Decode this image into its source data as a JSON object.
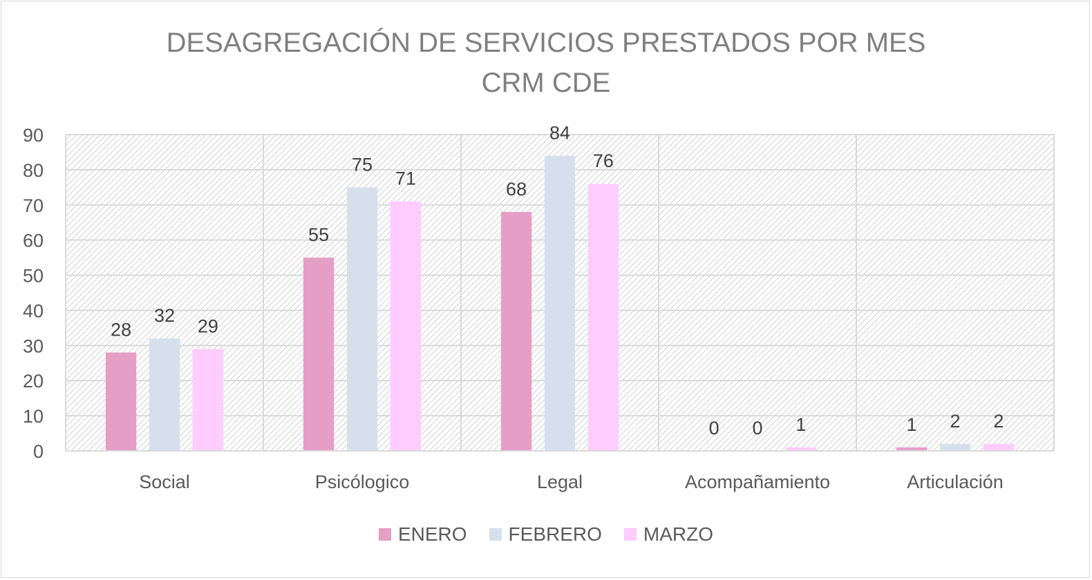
{
  "chart_data": {
    "type": "bar",
    "title": "DESAGREGACIÓN DE SERVICIOS PRESTADOS POR MES",
    "subtitle": "CRM CDE",
    "xlabel": "",
    "ylabel": "",
    "ylim": [
      0,
      90
    ],
    "yticks": [
      0,
      10,
      20,
      30,
      40,
      50,
      60,
      70,
      80,
      90
    ],
    "grid": true,
    "legend_position": "bottom",
    "categories": [
      "Social",
      "Psicólogico",
      "Legal",
      "Acompañamiento",
      "Articulación"
    ],
    "series": [
      {
        "name": "ENERO",
        "color": "#e59ec6",
        "values": [
          28,
          55,
          68,
          0,
          1
        ]
      },
      {
        "name": "FEBRERO",
        "color": "#d6e0ed",
        "values": [
          32,
          75,
          84,
          0,
          2
        ]
      },
      {
        "name": "MARZO",
        "color": "#ffccff",
        "values": [
          29,
          71,
          76,
          1,
          2
        ]
      }
    ]
  }
}
